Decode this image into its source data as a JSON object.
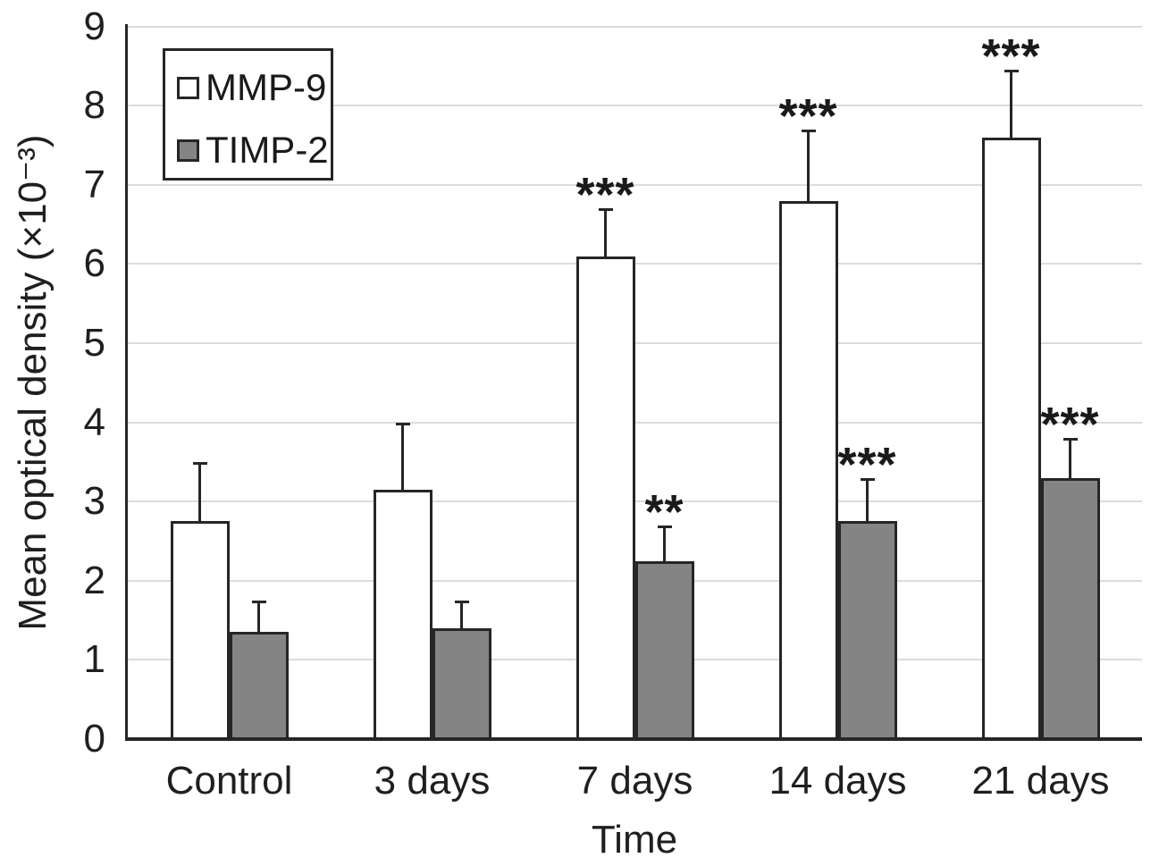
{
  "chart_data": {
    "type": "bar",
    "title": "",
    "xlabel": "Time",
    "ylabel": "Mean optical density (×10⁻³)",
    "ylim": [
      0,
      9
    ],
    "ytick_step": 1,
    "grid": true,
    "legend_position": "top-left",
    "categories": [
      "Control",
      "3 days",
      "7 days",
      "14 days",
      "21 days"
    ],
    "series": [
      {
        "name": "MMP-9",
        "fill": "#ffffff",
        "values": [
          2.75,
          3.15,
          6.1,
          6.8,
          7.6
        ],
        "errors_plus": [
          0.75,
          0.85,
          0.6,
          0.9,
          0.85
        ],
        "significance": [
          "",
          "",
          "***",
          "***",
          "***"
        ]
      },
      {
        "name": "TIMP-2",
        "fill": "#848484",
        "values": [
          1.35,
          1.4,
          2.25,
          2.75,
          3.3
        ],
        "errors_plus": [
          0.4,
          0.35,
          0.45,
          0.55,
          0.5
        ],
        "significance": [
          "",
          "",
          "**",
          "***",
          "***"
        ]
      }
    ]
  },
  "colors": {
    "bar_outline": "#262626",
    "gridline": "#dcdcdc",
    "axis": "#262626",
    "text": "#1f1f1f",
    "mmp9_fill": "#ffffff",
    "timp2_fill": "#848484"
  }
}
